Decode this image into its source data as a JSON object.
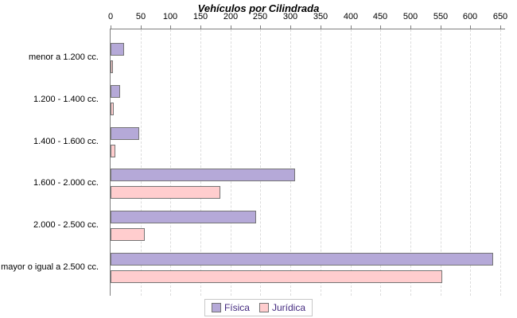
{
  "title": "Vehículos por Cilindrada",
  "chart_data": {
    "type": "bar",
    "orientation": "horizontal",
    "title": "Vehículos por Cilindrada",
    "categories": [
      "menor a 1.200 cc.",
      "1.200 - 1.400 cc.",
      "1.400 - 1.600 cc.",
      "1.600 - 2.000 cc.",
      "2.000 - 2.500 cc.",
      "mayor o igual a 2.500 cc."
    ],
    "series": [
      {
        "name": "Física",
        "color": "#b5a9d8",
        "values": [
          20,
          13,
          45,
          305,
          240,
          635
        ]
      },
      {
        "name": "Jurídica",
        "color": "#ffcdce",
        "values": [
          1,
          3,
          5,
          180,
          55,
          550
        ]
      }
    ],
    "xlabel": "",
    "ylabel": "",
    "xlim": [
      0,
      650
    ],
    "x_tick_step": 50,
    "x_tick_labels": [
      "0",
      "50",
      "100",
      "150",
      "200",
      "250",
      "300",
      "350",
      "400",
      "450",
      "500",
      "550",
      "600",
      "650"
    ],
    "grid": "vertical-dashed",
    "legend_position": "bottom"
  },
  "legend": {
    "items": [
      {
        "label": "Física",
        "color": "#b5a9d8"
      },
      {
        "label": "Jurídica",
        "color": "#ffcdce"
      }
    ]
  },
  "colors": {
    "bar_border": "#757575",
    "axis_line": "#7f7f7f",
    "gridline": "#dcdcdc",
    "legend_text": "#43297f",
    "legend_border": "#c8c8c8",
    "title_text": "#000000",
    "background": "#ffffff"
  }
}
